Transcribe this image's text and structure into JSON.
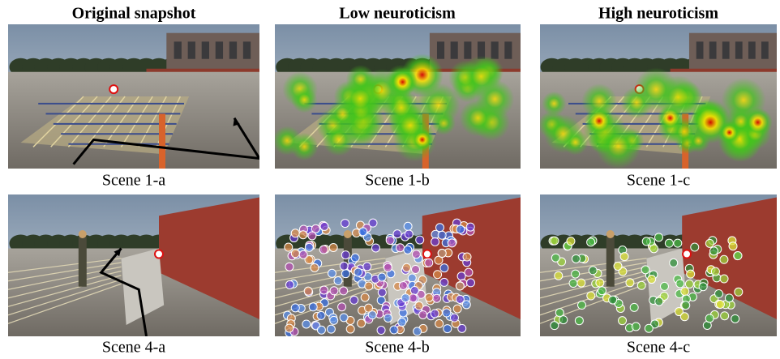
{
  "headers": [
    "Original snapshot",
    "Low neuroticism",
    "High neuroticism"
  ],
  "captions": [
    [
      "Scene 1-a",
      "Scene 1-b",
      "Scene 1-c"
    ],
    [
      "Scene 4-a",
      "Scene 4-b",
      "Scene 4-c"
    ]
  ]
}
